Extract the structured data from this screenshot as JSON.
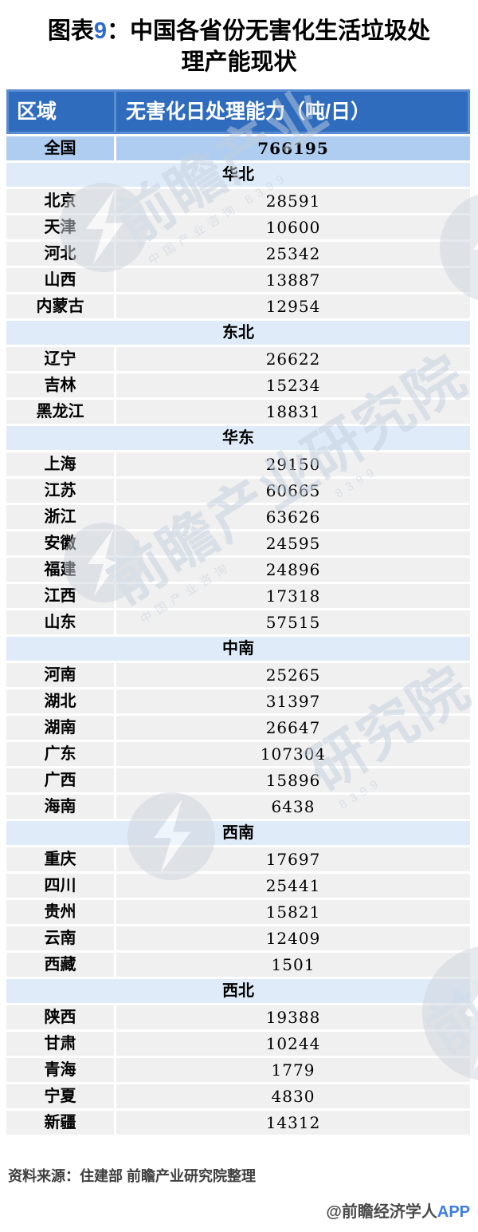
{
  "title": {
    "prefix": "图表",
    "number": "9",
    "colon": "：",
    "main": "中国各省份无害化生活垃圾处理产能现状"
  },
  "colors": {
    "header_band": "#5A8CD2",
    "header_bg": "#2F6CBE",
    "header_text": "#FFFFFF",
    "total_row_bg": "#AECDF0",
    "region_band_bg": "#E0EBFA",
    "data_row_bg": "#F0F0F0",
    "accent_blue": "#2C6BD2",
    "app_blue": "#3E7CE0",
    "footer_text": "#3F3F3F"
  },
  "chart_data": {
    "type": "table",
    "title": "图表9：中国各省份无害化生活垃圾处理产能现状",
    "columns": [
      "区域",
      "无害化日处理能力（吨/日）"
    ],
    "total_row": {
      "label": "全国",
      "value": "766195"
    },
    "sections": [
      {
        "region": "华北",
        "rows": [
          {
            "label": "北京",
            "value": "28591"
          },
          {
            "label": "天津",
            "value": "10600"
          },
          {
            "label": "河北",
            "value": "25342"
          },
          {
            "label": "山西",
            "value": "13887"
          },
          {
            "label": "内蒙古",
            "value": "12954"
          }
        ]
      },
      {
        "region": "东北",
        "rows": [
          {
            "label": "辽宁",
            "value": "26622"
          },
          {
            "label": "吉林",
            "value": "15234"
          },
          {
            "label": "黑龙江",
            "value": "18831"
          }
        ]
      },
      {
        "region": "华东",
        "rows": [
          {
            "label": "上海",
            "value": "29150"
          },
          {
            "label": "江苏",
            "value": "60665"
          },
          {
            "label": "浙江",
            "value": "63626"
          },
          {
            "label": "安徽",
            "value": "24595"
          },
          {
            "label": "福建",
            "value": "24896"
          },
          {
            "label": "江西",
            "value": "17318"
          },
          {
            "label": "山东",
            "value": "57515"
          }
        ]
      },
      {
        "region": "中南",
        "rows": [
          {
            "label": "河南",
            "value": "25265"
          },
          {
            "label": "湖北",
            "value": "31397"
          },
          {
            "label": "湖南",
            "value": "26647"
          },
          {
            "label": "广东",
            "value": "107304"
          },
          {
            "label": "广西",
            "value": "15896"
          },
          {
            "label": "海南",
            "value": "6438"
          }
        ]
      },
      {
        "region": "西南",
        "rows": [
          {
            "label": "重庆",
            "value": "17697"
          },
          {
            "label": "四川",
            "value": "25441"
          },
          {
            "label": "贵州",
            "value": "15821"
          },
          {
            "label": "云南",
            "value": "12409"
          },
          {
            "label": "西藏",
            "value": "1501"
          }
        ]
      },
      {
        "region": "西北",
        "rows": [
          {
            "label": "陕西",
            "value": "19388"
          },
          {
            "label": "甘肃",
            "value": "10244"
          },
          {
            "label": "青海",
            "value": "1779"
          },
          {
            "label": "宁夏",
            "value": "4830"
          },
          {
            "label": "新疆",
            "value": "14312"
          }
        ]
      }
    ]
  },
  "footer": {
    "source": "资料来源：住建部 前瞻产业研究院整理",
    "credit": "@前瞻经济学人",
    "credit_app": "APP"
  },
  "watermark": {
    "brand_large": "前瞻产业",
    "brand_suffix": "研究院",
    "subtitle": "中国产业咨询",
    "digits": "8399"
  }
}
